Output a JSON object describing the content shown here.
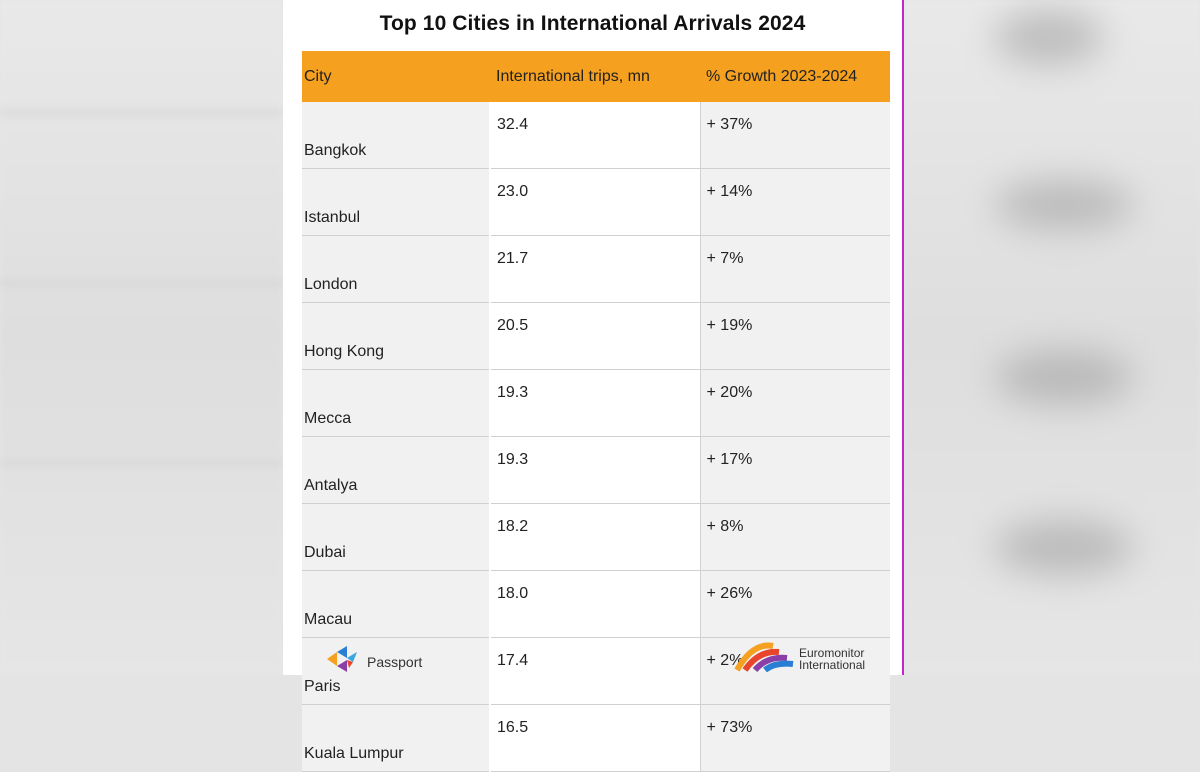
{
  "chart_data": {
    "type": "table",
    "title": "Top 10 Cities in International Arrivals 2024",
    "columns": [
      "City",
      "International trips, mn",
      "% Growth 2023-2024"
    ],
    "rows": [
      {
        "city": "Bangkok",
        "trips": "32.4",
        "growth": "+ 37%"
      },
      {
        "city": "Istanbul",
        "trips": "23.0",
        "growth": "+ 14%"
      },
      {
        "city": "London",
        "trips": "21.7",
        "growth": "+ 7%"
      },
      {
        "city": "Hong Kong",
        "trips": "20.5",
        "growth": "+ 19%"
      },
      {
        "city": "Mecca",
        "trips": "19.3",
        "growth": "+ 20%"
      },
      {
        "city": "Antalya",
        "trips": "19.3",
        "growth": "+ 17%"
      },
      {
        "city": "Dubai",
        "trips": "18.2",
        "growth": "+ 8%"
      },
      {
        "city": "Macau",
        "trips": "18.0",
        "growth": "+ 26%"
      },
      {
        "city": "Paris",
        "trips": "17.4",
        "growth": "+ 2%"
      },
      {
        "city": "Kuala Lumpur",
        "trips": "16.5",
        "growth": "+ 73%"
      }
    ],
    "header_color": "#f5a01e",
    "border_color": "#c026c9"
  },
  "footer": {
    "left_logo": {
      "name": "Passport",
      "icon": "passport-logo-icon"
    },
    "right_logo": {
      "line1": "Euromonitor",
      "line2": "International",
      "icon": "euromonitor-logo-icon"
    }
  }
}
